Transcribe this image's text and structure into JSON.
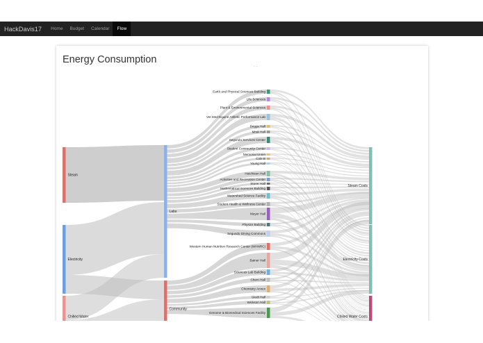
{
  "navbar": {
    "brand": "HackDavis17",
    "items": [
      {
        "label": "Home",
        "active": false
      },
      {
        "label": "Budget",
        "active": false
      },
      {
        "label": "Calendar",
        "active": false
      },
      {
        "label": "Flow",
        "active": true
      }
    ]
  },
  "page": {
    "title": "Energy Consumption",
    "subtitle": "· ·  ·"
  },
  "sankey": {
    "sources": [
      {
        "label": "Steam",
        "color": "#d9736d"
      },
      {
        "label": "Electricity",
        "color": "#6d9ee0"
      },
      {
        "label": "Chilled Water",
        "color": "#e8958f"
      }
    ],
    "categories": [
      {
        "label": "Labs",
        "color": "#8eb1e8"
      },
      {
        "label": "Community",
        "color": "#d9736d"
      }
    ],
    "buildings": [
      {
        "label": "Earth and Physical Sciences Building",
        "color": "#3a9a72"
      },
      {
        "label": "Life Sciences",
        "color": "#b58ad6"
      },
      {
        "label": "Plant & Environmental Sciences",
        "color": "#e8958f"
      },
      {
        "label": "Vet Med Equine Athletic Performance Lab",
        "color": "#9cc4e0"
      },
      {
        "label": "Briggs Hall",
        "color": "#e0c060"
      },
      {
        "label": "Mrak Hall",
        "color": "#9a9a9a"
      },
      {
        "label": "Segundo Services Center",
        "color": "#3a8a7a"
      },
      {
        "label": "Student Community Center",
        "color": "#c8b8e8"
      },
      {
        "label": "Memorial Union",
        "color": "#e8c070"
      },
      {
        "label": "Cole B",
        "color": "#e0a060"
      },
      {
        "label": "Young Hall",
        "color": "#b0d0e8"
      },
      {
        "label": "Hutchison Hall",
        "color": "#8ac0a0"
      },
      {
        "label": "Activities and Recreation Center",
        "color": "#7a9ad0"
      },
      {
        "label": "Storer Hall",
        "color": "#6a6a6a"
      },
      {
        "label": "Mathematical Sciences Building",
        "color": "#5a5a5a"
      },
      {
        "label": "Watershed Science Facility",
        "color": "#70c0d0"
      },
      {
        "label": "Student Health & Wellness Center",
        "color": "#b0b0b0"
      },
      {
        "label": "Meyer Hall",
        "color": "#9a60c0"
      },
      {
        "label": "Physics Building",
        "color": "#4a7a7a"
      },
      {
        "label": "Segundo Dining Commons",
        "color": "#c0d0f0"
      },
      {
        "label": "Western Human Nutrition Research Center (WHNRC)",
        "color": "#e07060"
      },
      {
        "label": "Bainer Hall",
        "color": "#e8a8a0"
      },
      {
        "label": "Sciences Lab Building",
        "color": "#70b0e0"
      },
      {
        "label": "Chem Hall",
        "color": "#c0c0c0"
      },
      {
        "label": "Chemistry Annex",
        "color": "#e0b070"
      },
      {
        "label": "Giedt Hall",
        "color": "#d0d0d0"
      },
      {
        "label": "Wickson Hall",
        "color": "#c0c080"
      },
      {
        "label": "Genome & Biomedical Sciences Facility",
        "color": "#4a9a50"
      }
    ],
    "costs": [
      {
        "label": "Steam Costs",
        "color": "#7fbfb4"
      },
      {
        "label": "Electricity Costs",
        "color": "#7fbfb4"
      },
      {
        "label": "Chilled Water Costs",
        "color": "#c0487a"
      }
    ],
    "link_color": "#bdbdbd"
  }
}
